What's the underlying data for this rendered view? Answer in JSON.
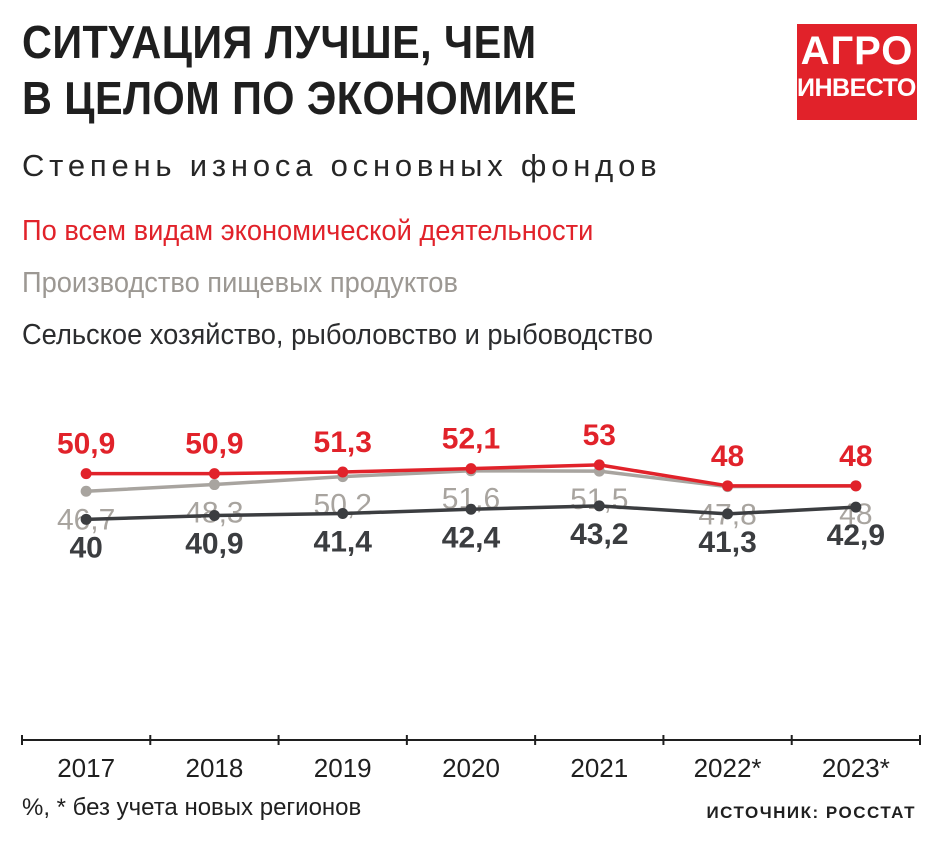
{
  "header": {
    "title_line1": "СИТУАЦИЯ ЛУЧШЕ, ЧЕМ",
    "title_line2": "В ЦЕЛОМ ПО ЭКОНОМИКЕ",
    "subtitle": "Степень износа основных фондов"
  },
  "logo": {
    "line1": "АГРО",
    "line2": "ИНВЕСТОР",
    "color": "#e1222a"
  },
  "footer": {
    "note": "%, * без учета новых регионов",
    "source": "ИСТОЧНИК: РОССТАТ"
  },
  "chart_data": {
    "type": "line",
    "categories": [
      "2017",
      "2018",
      "2019",
      "2020",
      "2021",
      "2022*",
      "2023*"
    ],
    "series": [
      {
        "name": "По всем видам экономической деятельности",
        "color": "#e1222a",
        "label_position": "above",
        "values": [
          50.9,
          50.9,
          51.3,
          52.1,
          53,
          48,
          48
        ],
        "labels": [
          "50,9",
          "50,9",
          "51,3",
          "52,1",
          "53",
          "48",
          "48"
        ]
      },
      {
        "name": "Производство пищевых продуктов",
        "color": "#a8a49f",
        "label_position": "below",
        "values": [
          46.7,
          48.3,
          50.2,
          51.6,
          51.5,
          47.8,
          48
        ],
        "labels": [
          "46,7",
          "48,3",
          "50,2",
          "51,6",
          "51,5",
          "47,8",
          "48"
        ]
      },
      {
        "name": "Сельское хозяйство, рыболовство и рыбоводство",
        "color": "#3b3d40",
        "label_position": "below",
        "values": [
          40,
          40.9,
          41.4,
          42.4,
          43.2,
          41.3,
          42.9
        ],
        "labels": [
          "40",
          "40,9",
          "41,4",
          "42,4",
          "43,2",
          "41,3",
          "42,9"
        ]
      }
    ],
    "ylabel": "%",
    "grid": false,
    "legend_placement": "top-left, above plot"
  }
}
